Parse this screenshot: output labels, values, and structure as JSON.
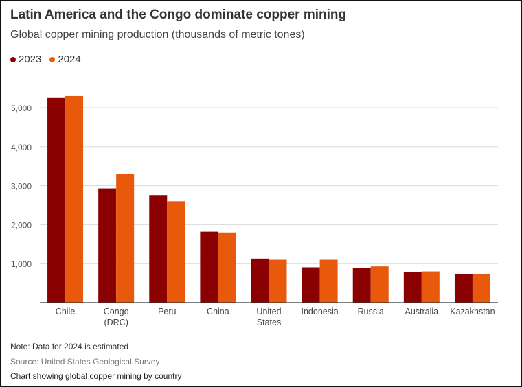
{
  "chart_data": {
    "type": "bar",
    "title": "Latin America and the Congo dominate copper mining",
    "subtitle": "Global copper mining production (thousands of metric tones)",
    "categories": [
      [
        "Chile"
      ],
      [
        "Congo",
        "(DRC)"
      ],
      [
        "Peru"
      ],
      [
        "China"
      ],
      [
        "United",
        "States"
      ],
      [
        "Indonesia"
      ],
      [
        "Russia"
      ],
      [
        "Australia"
      ],
      [
        "Kazakhstan"
      ]
    ],
    "series": [
      {
        "name": "2023",
        "color": "#8B0000",
        "values": [
          5250,
          2930,
          2760,
          1820,
          1130,
          907,
          881,
          778,
          740
        ]
      },
      {
        "name": "2024",
        "color": "#E8590C",
        "values": [
          5300,
          3300,
          2600,
          1800,
          1100,
          1100,
          930,
          800,
          740
        ]
      }
    ],
    "ylim": [
      0,
      5000
    ],
    "yticks": [
      {
        "value": 1000,
        "label": "1,000"
      },
      {
        "value": 2000,
        "label": "2,000"
      },
      {
        "value": 3000,
        "label": "3,000"
      },
      {
        "value": 4000,
        "label": "4,000"
      },
      {
        "value": 5000,
        "label": "5,000"
      }
    ],
    "grid": true,
    "legend_position": "top-left"
  },
  "footer": {
    "note": "Note: Data for 2024 is estimated",
    "source": "Source: United States Geological Survey",
    "caption": "Chart showing global copper mining by country"
  }
}
